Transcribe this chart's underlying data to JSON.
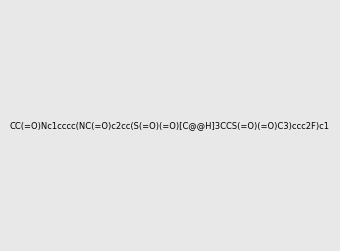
{
  "smiles": "CC(=O)Nc1cccc(NC(=O)c2cc(S(=O)(=O)[C@@H]3CCS(=O)(=O)C3)ccc2F)c1",
  "bg_color": "#e8e8e8",
  "size": [
    300,
    300
  ],
  "atom_colors": {
    "N": [
      0,
      128,
      128
    ],
    "O": [
      255,
      0,
      0
    ],
    "S": [
      180,
      180,
      0
    ],
    "F": [
      255,
      0,
      255
    ]
  }
}
